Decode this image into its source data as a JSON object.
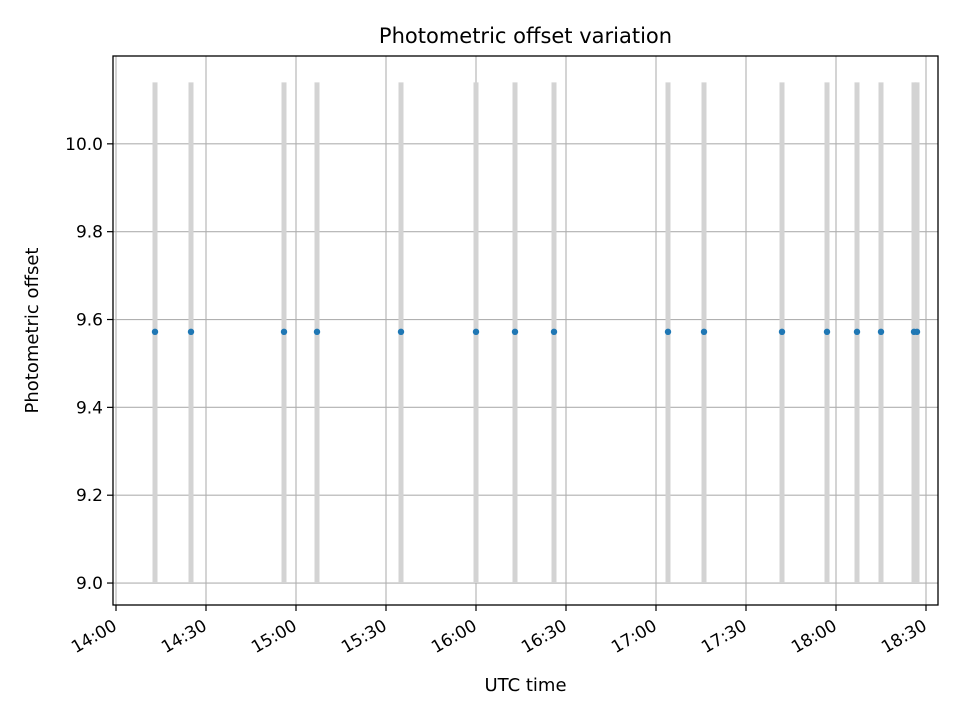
{
  "chart_data": {
    "type": "scatter",
    "title": "Photometric offset variation",
    "xlabel": "UTC time",
    "ylabel": "Photometric offset",
    "x_is_time": true,
    "x_unit": "HH:MM (UTC)",
    "xlim": [
      "13:59",
      "18:34"
    ],
    "ylim": [
      8.95,
      10.2
    ],
    "xticks": [
      "14:00",
      "14:30",
      "15:00",
      "15:30",
      "16:00",
      "16:30",
      "17:00",
      "17:30",
      "18:00",
      "18:30"
    ],
    "yticks": [
      9.0,
      9.2,
      9.4,
      9.6,
      9.8,
      10.0
    ],
    "ytick_labels": [
      "9.0",
      "9.2",
      "9.4",
      "9.6",
      "9.8",
      "10.0"
    ],
    "grid": true,
    "marker_color": "#1f77b4",
    "errorbar_color": "#d3d3d3",
    "series": [
      {
        "points": [
          {
            "x": "14:13",
            "y": 9.572,
            "ylow": 9.0,
            "yhigh": 10.14
          },
          {
            "x": "14:25",
            "y": 9.572,
            "ylow": 9.0,
            "yhigh": 10.14
          },
          {
            "x": "14:56",
            "y": 9.572,
            "ylow": 9.0,
            "yhigh": 10.14
          },
          {
            "x": "15:07",
            "y": 9.572,
            "ylow": 9.0,
            "yhigh": 10.14
          },
          {
            "x": "15:35",
            "y": 9.572,
            "ylow": 9.0,
            "yhigh": 10.14
          },
          {
            "x": "16:00",
            "y": 9.572,
            "ylow": 9.0,
            "yhigh": 10.14
          },
          {
            "x": "16:13",
            "y": 9.572,
            "ylow": 9.0,
            "yhigh": 10.14
          },
          {
            "x": "16:26",
            "y": 9.572,
            "ylow": 9.0,
            "yhigh": 10.14
          },
          {
            "x": "17:04",
            "y": 9.572,
            "ylow": 9.0,
            "yhigh": 10.14
          },
          {
            "x": "17:16",
            "y": 9.572,
            "ylow": 9.0,
            "yhigh": 10.14
          },
          {
            "x": "17:42",
            "y": 9.572,
            "ylow": 9.0,
            "yhigh": 10.14
          },
          {
            "x": "17:57",
            "y": 9.572,
            "ylow": 9.0,
            "yhigh": 10.14
          },
          {
            "x": "18:07",
            "y": 9.572,
            "ylow": 9.0,
            "yhigh": 10.14
          },
          {
            "x": "18:15",
            "y": 9.572,
            "ylow": 9.0,
            "yhigh": 10.14
          },
          {
            "x": "18:26",
            "y": 9.572,
            "ylow": 9.0,
            "yhigh": 10.14
          },
          {
            "x": "18:27",
            "y": 9.572,
            "ylow": 9.0,
            "yhigh": 10.14
          }
        ]
      }
    ]
  }
}
